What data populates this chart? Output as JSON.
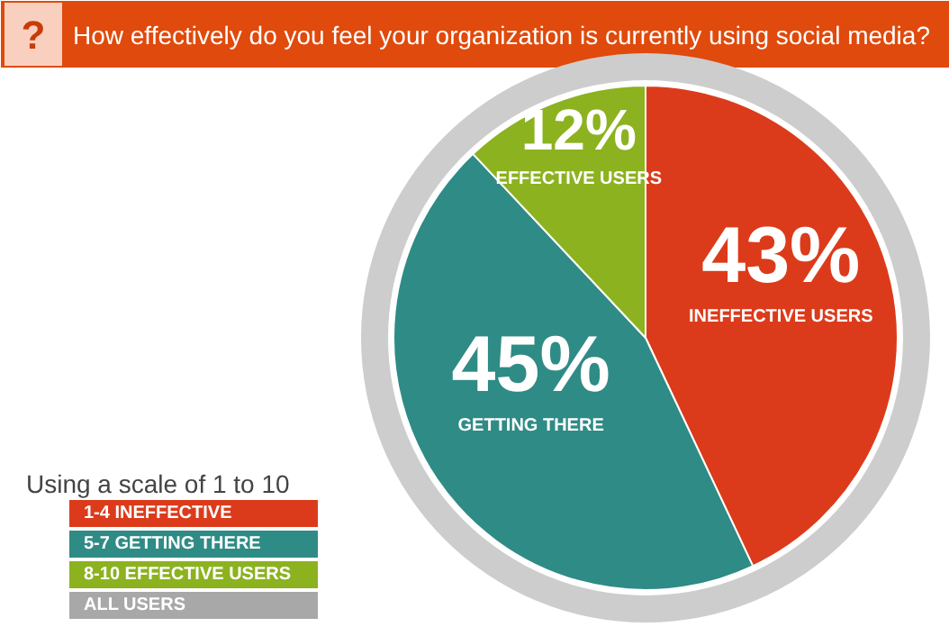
{
  "chart_data": {
    "type": "pie",
    "title": "How effectively do you feel your organization is currently using social media?",
    "categories": [
      "INEFFECTIVE USERS",
      "GETTING THERE",
      "EFFECTIVE USERS"
    ],
    "values": [
      43,
      45,
      12
    ],
    "colors": [
      "#dc3b1b",
      "#2f8b85",
      "#8cb21f"
    ],
    "value_labels": [
      "43%",
      "45%",
      "12%"
    ],
    "legend_title": "Using a scale of 1 to 10",
    "annotations": [
      "?",
      "1-4   INEFFECTIVE",
      "5-7   GETTING THERE",
      "8-10  EFFECTIVE USERS",
      "ALL USERS"
    ]
  }
}
